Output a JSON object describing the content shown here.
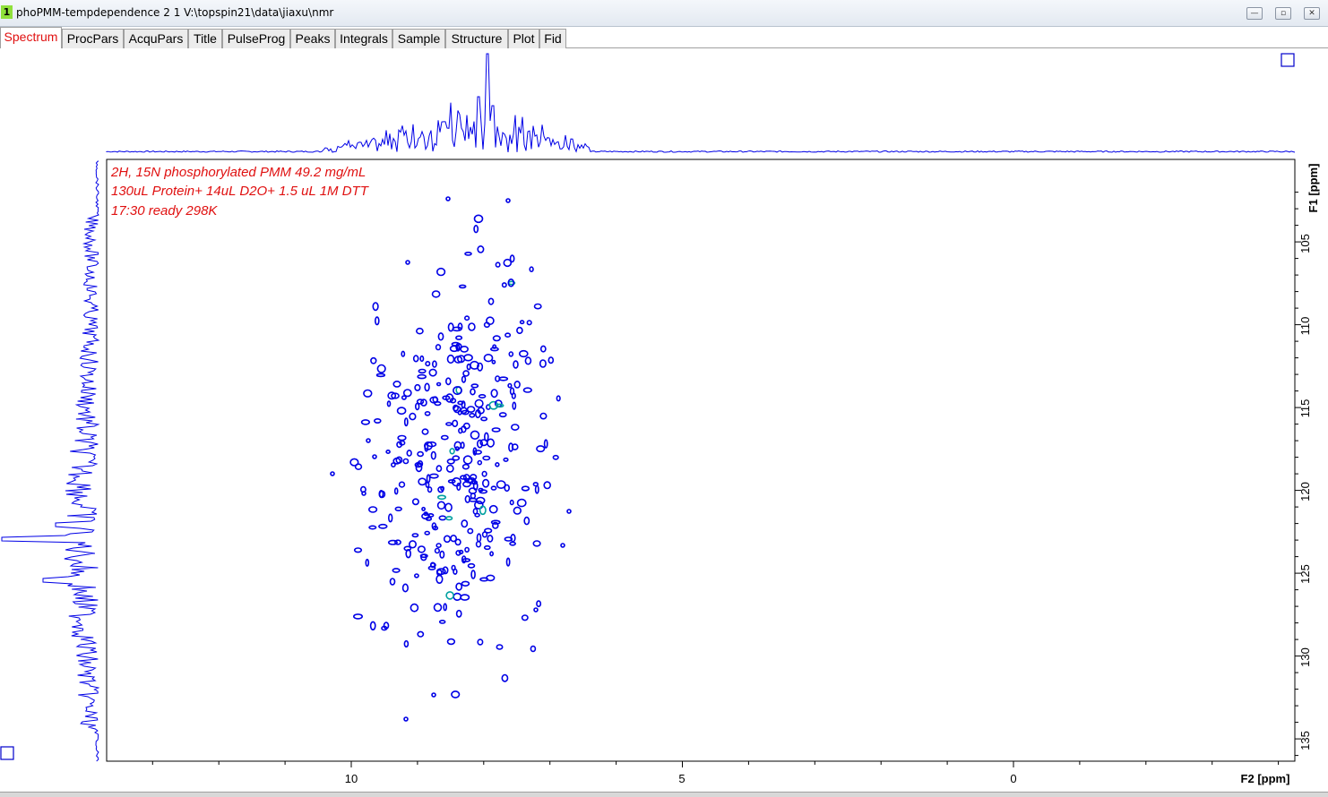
{
  "window": {
    "number": "1",
    "title": "phoPMM-tempdependence  2  1  V:\\topspin21\\data\\jiaxu\\nmr",
    "minimize_glyph": "—",
    "restore_glyph": "▫",
    "close_glyph": "✕"
  },
  "tabs": [
    {
      "label": "Spectrum",
      "active": true
    },
    {
      "label": "ProcPars"
    },
    {
      "label": "AcquPars"
    },
    {
      "label": "Title"
    },
    {
      "label": "PulseProg"
    },
    {
      "label": "Peaks"
    },
    {
      "label": "Integrals"
    },
    {
      "label": "Sample"
    },
    {
      "label": "Structure"
    },
    {
      "label": "Plot"
    },
    {
      "label": "Fid"
    }
  ],
  "spectrum": {
    "title_lines": [
      "2H, 15N phosphorylated PMM 49.2 mg/mL",
      "130uL Protein+ 14uL D2O+ 1.5 uL 1M DTT",
      "17:30 ready 298K"
    ],
    "f1_label": "F1 [ppm]",
    "f2_label": "F2 [ppm]",
    "f1_ticks": [
      "105",
      "110",
      "115",
      "120",
      "125",
      "130",
      "135"
    ],
    "f2_ticks": [
      "10",
      "5",
      "0"
    ],
    "colors": {
      "contour": "#0000e6",
      "text": "#e01010",
      "accent": "#00a0a0"
    }
  }
}
